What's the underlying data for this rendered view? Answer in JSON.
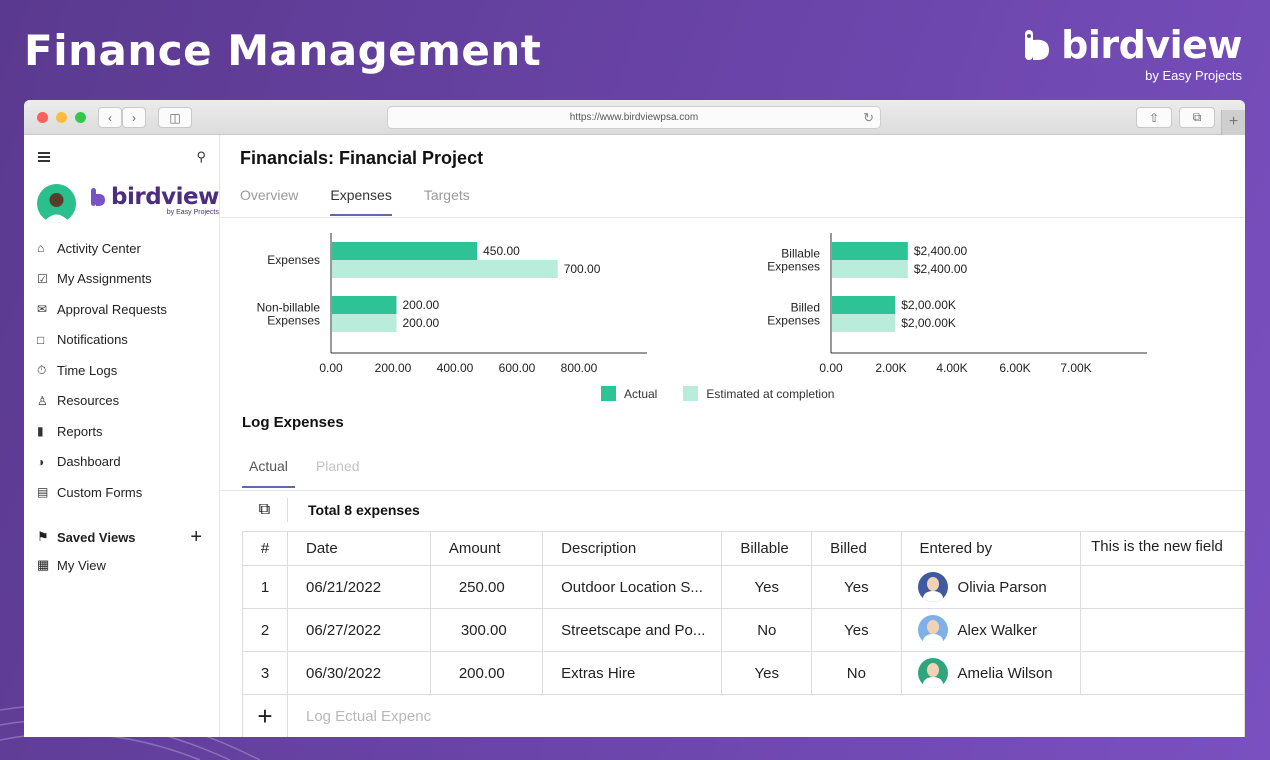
{
  "hero": {
    "title": "Finance Management"
  },
  "brand": {
    "name": "birdview",
    "sub": "by Easy Projects"
  },
  "browser": {
    "url": "https://www.birdviewpsa.com"
  },
  "sidebar": {
    "logo": {
      "name": "birdview",
      "sub": "by Easy Projects"
    },
    "items": [
      {
        "label": "Activity Center",
        "icon": "home-icon"
      },
      {
        "label": "My Assignments",
        "icon": "checkbox-icon"
      },
      {
        "label": "Approval Requests",
        "icon": "approval-icon"
      },
      {
        "label": "Notifications",
        "icon": "chat-icon"
      },
      {
        "label": "Time Logs",
        "icon": "stopwatch-icon"
      },
      {
        "label": "Resources",
        "icon": "person-icon"
      },
      {
        "label": "Reports",
        "icon": "bars-icon"
      },
      {
        "label": "Dashboard",
        "icon": "gauge-icon"
      },
      {
        "label": "Custom Forms",
        "icon": "form-icon"
      }
    ],
    "saved_views": {
      "label": "Saved Views",
      "items": [
        {
          "label": "My View"
        }
      ]
    }
  },
  "main": {
    "title": "Financials: Financial Project",
    "tabs": [
      {
        "label": "Overview"
      },
      {
        "label": "Expenses"
      },
      {
        "label": "Targets"
      }
    ],
    "active_tab": "Expenses",
    "legend": {
      "actual": "Actual",
      "estimated": "Estimated at completion"
    },
    "colors": {
      "actual": "#2ec394",
      "estimated": "#b9ecdb"
    },
    "log": {
      "title": "Log Expenses",
      "subtabs": [
        {
          "label": "Actual"
        },
        {
          "label": "Planed"
        }
      ],
      "total": "Total 8 expenses",
      "columns": [
        "#",
        "Date",
        "Amount",
        "Description",
        "Billable",
        "Billed",
        "Entered by",
        "This is the new field"
      ],
      "rows": [
        {
          "n": "1",
          "date": "06/21/2022",
          "amount": "250.00",
          "desc": "Outdoor Location S...",
          "billable": "Yes",
          "billed": "Yes",
          "by": "Olivia Parson",
          "avatar_bg": "#3f5a9e"
        },
        {
          "n": "2",
          "date": "06/27/2022",
          "amount": "300.00",
          "desc": "Streetscape and Po...",
          "billable": "No",
          "billed": "Yes",
          "by": "Alex Walker",
          "avatar_bg": "#7fb0e8"
        },
        {
          "n": "3",
          "date": "06/30/2022",
          "amount": "200.00",
          "desc": "Extras Hire",
          "billable": "Yes",
          "billed": "No",
          "by": "Amelia Wilson",
          "avatar_bg": "#2fa57c"
        }
      ],
      "add_placeholder": "Log Ectual Expenc"
    }
  },
  "chart_data": [
    {
      "type": "bar",
      "orientation": "horizontal",
      "categories": [
        "Expenses",
        "Non-billable Expenses"
      ],
      "series": [
        {
          "name": "Actual",
          "values": [
            450,
            200
          ],
          "labels": [
            "450.00",
            "200.00"
          ]
        },
        {
          "name": "Estimated at completion",
          "values": [
            700,
            200
          ],
          "labels": [
            "700.00",
            "200.00"
          ]
        }
      ],
      "xticks": [
        "0.00",
        "200.00",
        "400.00",
        "600.00",
        "800.00"
      ],
      "xlim": [
        0,
        980
      ]
    },
    {
      "type": "bar",
      "orientation": "horizontal",
      "categories": [
        "Billable Expenses",
        "Billed Expenses"
      ],
      "series": [
        {
          "name": "Actual",
          "values": [
            2400,
            2000
          ],
          "labels": [
            "$2,400.00",
            "$2,00.00K"
          ]
        },
        {
          "name": "Estimated at completion",
          "values": [
            2400,
            2000
          ],
          "labels": [
            "$2,400.00",
            "$2,00.00K"
          ]
        }
      ],
      "xticks": [
        "0.00",
        "2.00K",
        "4.00K",
        "6.00K",
        "7.00K"
      ],
      "xlim": [
        0,
        10000
      ]
    }
  ]
}
